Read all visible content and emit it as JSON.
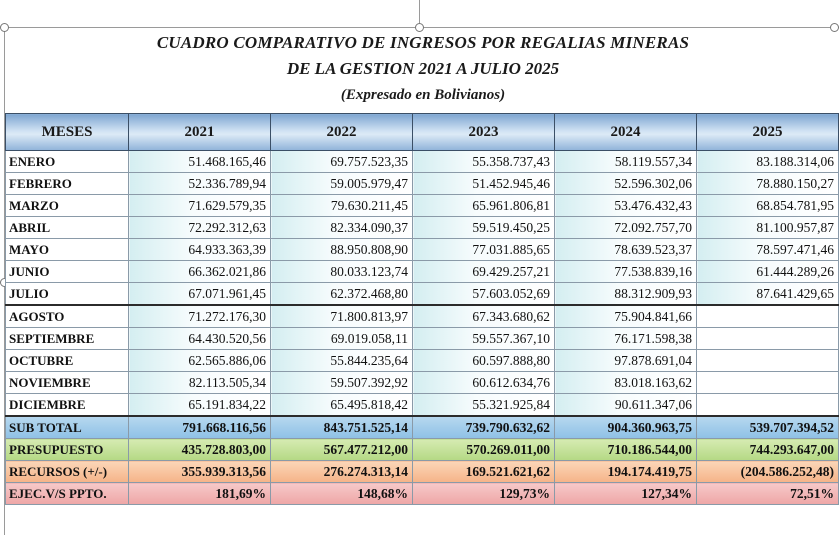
{
  "title": {
    "line1": "CUADRO COMPARATIVO DE INGRESOS POR REGALIAS MINERAS",
    "line2": "DE LA GESTION 2021 A JULIO 2025",
    "line3": "(Expresado en Bolivianos)"
  },
  "table": {
    "headers": [
      "MESES",
      "2021",
      "2022",
      "2023",
      "2024",
      "2025"
    ],
    "rows": [
      [
        "ENERO",
        "51.468.165,46",
        "69.757.523,35",
        "55.358.737,43",
        "58.119.557,34",
        "83.188.314,06"
      ],
      [
        "FEBRERO",
        "52.336.789,94",
        "59.005.979,47",
        "51.452.945,46",
        "52.596.302,06",
        "78.880.150,27"
      ],
      [
        "MARZO",
        "71.629.579,35",
        "79.630.211,45",
        "65.961.806,81",
        "53.476.432,43",
        "68.854.781,95"
      ],
      [
        "ABRIL",
        "72.292.312,63",
        "82.334.090,37",
        "59.519.450,25",
        "72.092.757,70",
        "81.100.957,87"
      ],
      [
        "MAYO",
        "64.933.363,39",
        "88.950.808,90",
        "77.031.885,65",
        "78.639.523,37",
        "78.597.471,46"
      ],
      [
        "JUNIO",
        "66.362.021,86",
        "80.033.123,74",
        "69.429.257,21",
        "77.538.839,16",
        "61.444.289,26"
      ],
      [
        "JULIO",
        "67.071.961,45",
        "62.372.468,80",
        "57.603.052,69",
        "88.312.909,93",
        "87.641.429,65"
      ],
      [
        "AGOSTO",
        "71.272.176,30",
        "71.800.813,97",
        "67.343.680,62",
        "75.904.841,66",
        ""
      ],
      [
        "SEPTIEMBRE",
        "64.430.520,56",
        "69.019.058,11",
        "59.557.367,10",
        "76.171.598,38",
        ""
      ],
      [
        "OCTUBRE",
        "62.565.886,06",
        "55.844.235,64",
        "60.597.888,80",
        "97.878.691,04",
        ""
      ],
      [
        "NOVIEMBRE",
        "82.113.505,34",
        "59.507.392,92",
        "60.612.634,76",
        "83.018.163,62",
        ""
      ],
      [
        "DICIEMBRE",
        "65.191.834,22",
        "65.495.818,42",
        "55.321.925,84",
        "90.611.347,06",
        ""
      ]
    ],
    "subtotal": [
      "SUB TOTAL",
      "791.668.116,56",
      "843.751.525,14",
      "739.790.632,62",
      "904.360.963,75",
      "539.707.394,52"
    ],
    "presupuesto": [
      "PRESUPUESTO",
      "435.728.803,00",
      "567.477.212,00",
      "570.269.011,00",
      "710.186.544,00",
      "744.293.647,00"
    ],
    "recursos": [
      "RECURSOS (+/-)",
      "355.939.313,56",
      "276.274.313,14",
      "169.521.621,62",
      "194.174.419,75",
      "(204.586.252,48)"
    ],
    "ejecucion": [
      "EJEC.V/S PPTO.",
      "181,69%",
      "148,68%",
      "129,73%",
      "127,34%",
      "72,51%"
    ]
  }
}
